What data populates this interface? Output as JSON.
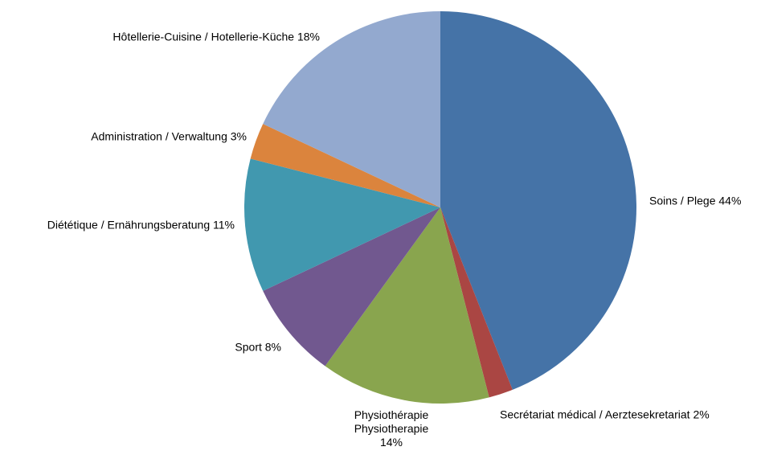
{
  "chart_data": {
    "type": "pie",
    "categories": [
      "Soins / Plege",
      "Secrétariat médical / Aerztesekretariat",
      "Physiothérapie\nPhysiotherapie",
      "Sport",
      "Diététique / Ernährungsberatung",
      "Administration / Verwaltung",
      "Hôtellerie-Cuisine / Hotellerie-Küche"
    ],
    "values": [
      44,
      2,
      14,
      8,
      11,
      3,
      18
    ],
    "value_labels": [
      "44%",
      "2%",
      "14%",
      "8%",
      "11%",
      "3%",
      "18%"
    ],
    "colors": [
      "#4573a7",
      "#aa4643",
      "#89a54e",
      "#71588f",
      "#4198af",
      "#db843d",
      "#93a9cf"
    ]
  }
}
